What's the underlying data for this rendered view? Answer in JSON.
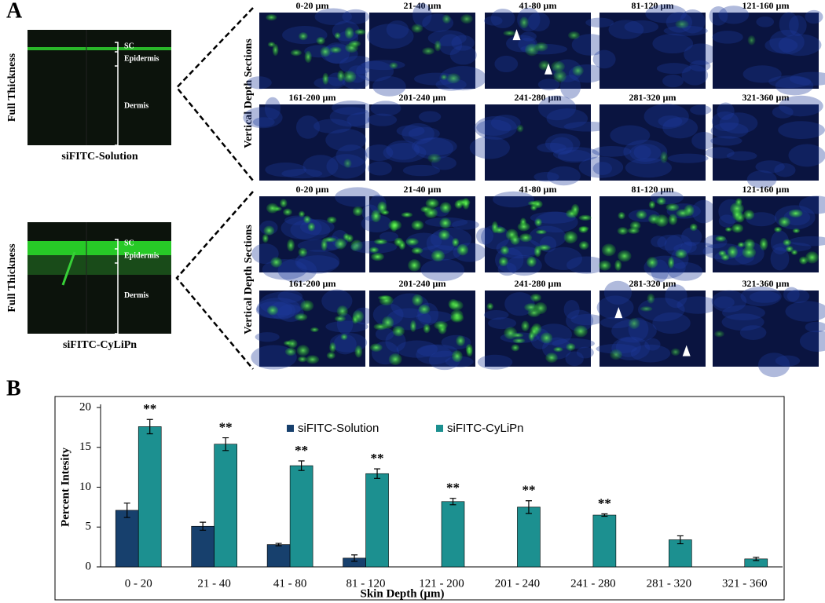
{
  "panel_a": {
    "label": "A",
    "groups": [
      {
        "full_label": "Full Thickness",
        "sample": "siFITC-Solution",
        "layers": [
          "SC",
          "Epidermis",
          "Dermis"
        ],
        "section_label": "Vertical Depth Sections",
        "depths": [
          "0-20 µm",
          "21-40 µm",
          "41-80 µm",
          "81-120 µm",
          "121-160 µm",
          "161-200 µm",
          "201-240 µm",
          "241-280 µm",
          "281-320 µm",
          "321-360 µm"
        ]
      },
      {
        "full_label": "Full Thickness",
        "sample": "siFITC-CyLiPn",
        "layers": [
          "SC",
          "Epidermis",
          "Dermis"
        ],
        "section_label": "Vertical Depth Sections",
        "depths": [
          "0-20 µm",
          "21-40 µm",
          "41-80 µm",
          "81-120 µm",
          "121-160 µm",
          "161-200 µm",
          "201-240 µm",
          "241-280 µm",
          "281-320 µm",
          "321-360 µm"
        ]
      }
    ]
  },
  "panel_b_label": "B",
  "chart_data": {
    "type": "bar",
    "x_label": "Skin Depth (µm)",
    "y_label": "Percent Intesity",
    "categories": [
      "0 - 20",
      "21 - 40",
      "41 - 80",
      "81 - 120",
      "121 - 200",
      "201 - 240",
      "241 - 280",
      "281 - 320",
      "321 - 360"
    ],
    "series": [
      {
        "name": "siFITC-Solution",
        "color": "#17406d",
        "values": [
          7.1,
          5.1,
          2.8,
          1.1,
          0,
          0,
          0,
          0,
          0
        ],
        "errors": [
          0.9,
          0.5,
          0.15,
          0.4,
          0,
          0,
          0,
          0,
          0
        ]
      },
      {
        "name": "siFITC-CyLiPn",
        "color": "#1c9090",
        "values": [
          17.6,
          15.4,
          12.7,
          11.7,
          8.2,
          7.5,
          6.5,
          3.4,
          1.0
        ],
        "errors": [
          0.9,
          0.8,
          0.6,
          0.6,
          0.4,
          0.8,
          0.15,
          0.5,
          0.2
        ],
        "annotations": [
          "**",
          "**",
          "**",
          "**",
          "**",
          "**",
          "**",
          null,
          null
        ]
      }
    ],
    "ylim": [
      0,
      20
    ],
    "yticks": [
      0,
      5,
      10,
      15,
      20
    ],
    "grid": false
  }
}
